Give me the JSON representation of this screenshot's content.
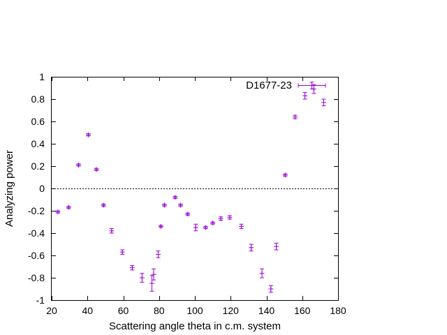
{
  "chart_data": {
    "type": "scatter",
    "xlabel": "Scattering angle theta in c.m. system",
    "ylabel": "Analyzing power",
    "xlim": [
      20,
      180
    ],
    "ylim": [
      -1,
      1
    ],
    "xticks": [
      20,
      40,
      60,
      80,
      100,
      120,
      140,
      160,
      180
    ],
    "yticks": [
      -1,
      -0.8,
      -0.6,
      -0.4,
      -0.2,
      0,
      0.2,
      0.4,
      0.6,
      0.8,
      1
    ],
    "xtick_labels": [
      "20",
      "40",
      "60",
      "80",
      "100",
      "120",
      "140",
      "160",
      "180"
    ],
    "ytick_labels": [
      "-1",
      "-0.8",
      "-0.6",
      "-0.4",
      "-0.2",
      "0",
      "0.2",
      "0.4",
      "0.6",
      "0.8",
      "1"
    ],
    "grid": false,
    "zero_line": true,
    "legend_position": "top-right",
    "series": [
      {
        "name": "D1677-23",
        "color": "#9400d3",
        "marker": "plus",
        "points": [
          {
            "x": 23.5,
            "y": -0.21,
            "yerr": 0.01,
            "xerr": 0
          },
          {
            "x": 29.5,
            "y": -0.17,
            "yerr": 0.01,
            "xerr": 0
          },
          {
            "x": 35.0,
            "y": 0.21,
            "yerr": 0.01,
            "xerr": 0
          },
          {
            "x": 40.5,
            "y": 0.48,
            "yerr": 0.01,
            "xerr": 0
          },
          {
            "x": 45.0,
            "y": 0.17,
            "yerr": 0.01,
            "xerr": 0
          },
          {
            "x": 49.0,
            "y": -0.15,
            "yerr": 0.01,
            "xerr": 0
          },
          {
            "x": 53.5,
            "y": -0.38,
            "yerr": 0.02,
            "xerr": 0
          },
          {
            "x": 59.5,
            "y": -0.57,
            "yerr": 0.02,
            "xerr": 0
          },
          {
            "x": 65.0,
            "y": -0.71,
            "yerr": 0.02,
            "xerr": 0
          },
          {
            "x": 70.5,
            "y": -0.8,
            "yerr": 0.04,
            "xerr": 0
          },
          {
            "x": 76.0,
            "y": -0.85,
            "yerr": 0.07,
            "xerr": 0
          },
          {
            "x": 77.0,
            "y": -0.77,
            "yerr": 0.05,
            "xerr": 0
          },
          {
            "x": 79.5,
            "y": -0.59,
            "yerr": 0.03,
            "xerr": 0
          },
          {
            "x": 81.0,
            "y": -0.34,
            "yerr": 0.01,
            "xerr": 0
          },
          {
            "x": 83.0,
            "y": -0.15,
            "yerr": 0.01,
            "xerr": 0
          },
          {
            "x": 89.0,
            "y": -0.08,
            "yerr": 0.01,
            "xerr": 0
          },
          {
            "x": 92.0,
            "y": -0.15,
            "yerr": 0.01,
            "xerr": 0
          },
          {
            "x": 96.0,
            "y": -0.23,
            "yerr": 0.01,
            "xerr": 0
          },
          {
            "x": 100.5,
            "y": -0.35,
            "yerr": 0.03,
            "xerr": 0
          },
          {
            "x": 106.0,
            "y": -0.35,
            "yerr": 0.01,
            "xerr": 0
          },
          {
            "x": 110.0,
            "y": -0.31,
            "yerr": 0.01,
            "xerr": 0
          },
          {
            "x": 114.5,
            "y": -0.27,
            "yerr": 0.015,
            "xerr": 0
          },
          {
            "x": 119.5,
            "y": -0.26,
            "yerr": 0.015,
            "xerr": 0
          },
          {
            "x": 126.0,
            "y": -0.34,
            "yerr": 0.02,
            "xerr": 0
          },
          {
            "x": 131.5,
            "y": -0.53,
            "yerr": 0.03,
            "xerr": 0
          },
          {
            "x": 137.5,
            "y": -0.76,
            "yerr": 0.04,
            "xerr": 0
          },
          {
            "x": 142.5,
            "y": -0.9,
            "yerr": 0.03,
            "xerr": 0
          },
          {
            "x": 145.5,
            "y": -0.52,
            "yerr": 0.03,
            "xerr": 0
          },
          {
            "x": 150.5,
            "y": 0.12,
            "yerr": 0.01,
            "xerr": 0
          },
          {
            "x": 156.0,
            "y": 0.64,
            "yerr": 0.015,
            "xerr": 0
          },
          {
            "x": 161.5,
            "y": 0.83,
            "yerr": 0.03,
            "xerr": 0
          },
          {
            "x": 166.5,
            "y": 0.89,
            "yerr": 0.04,
            "xerr": 0
          },
          {
            "x": 172.0,
            "y": 0.77,
            "yerr": 0.03,
            "xerr": 0
          }
        ]
      }
    ],
    "legend_sample": {
      "y_err_half": 0.03
    }
  }
}
